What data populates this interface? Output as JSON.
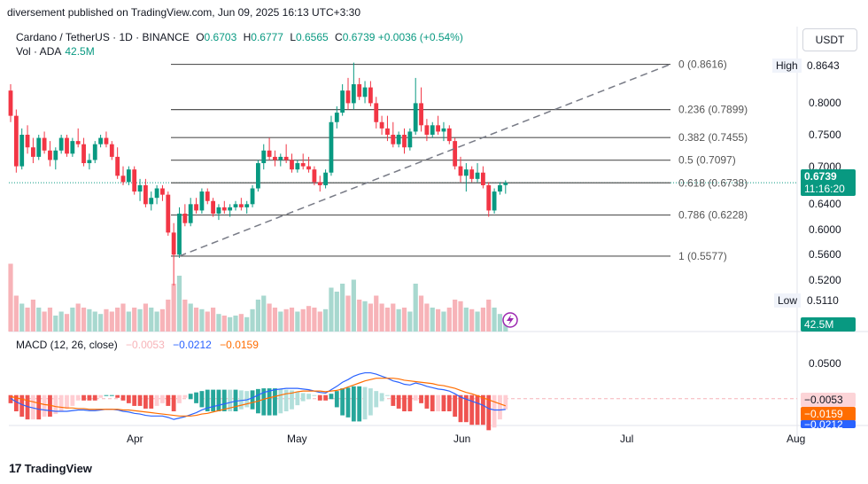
{
  "header": {
    "text": "diversement published on TradingView.com, Jun 09, 2025 16:13 UTC+3:30"
  },
  "legend": {
    "symbol": "Cardano / TetherUS · 1D · BINANCE",
    "o_label": "O",
    "o": "0.6703",
    "h_label": "H",
    "h": "0.6777",
    "l_label": "L",
    "l": "0.6565",
    "c_label": "C",
    "c": "0.6739",
    "change": "+0.0036 (+0.54%)",
    "vol_label": "Vol · ADA",
    "vol": "42.5M"
  },
  "macd_legend": {
    "label": "MACD (12, 26, close)",
    "hist": "−0.0053",
    "macd": "−0.0212",
    "signal": "−0.0159"
  },
  "currency": "USDT",
  "colors": {
    "up": "#089981",
    "down": "#f23645",
    "up_vol": "#a8d8cf",
    "down_vol": "#f7b3b8",
    "macd_line": "#2962ff",
    "signal_line": "#ff6d00",
    "fib": "#555555",
    "trend": "#787b86"
  },
  "price_axis_labels": [
    "0.8000",
    "0.7500",
    "0.7000",
    "0.6400",
    "0.6000",
    "0.5600",
    "0.5200"
  ],
  "macd_axis_labels": [
    "0.0500"
  ],
  "badges": {
    "high_label": "High",
    "high": "0.8643",
    "low_label": "Low",
    "low": "0.5110",
    "last": "0.6739",
    "countdown": "11:16:20",
    "vol": "42.5M",
    "hist": "−0.0053",
    "signal": "−0.0159",
    "macd": "−0.0212"
  },
  "x_labels": [
    "Apr",
    "May",
    "Jun",
    "Jul",
    "Aug"
  ],
  "footer": {
    "brand": "TradingView"
  },
  "chart_data": {
    "type": "candlestick",
    "symbol": "ADAUSDT",
    "timeframe": "1D",
    "fib_levels": [
      {
        "ratio": "0",
        "price": 0.8616,
        "label": "0 (0.8616)"
      },
      {
        "ratio": "0.236",
        "price": 0.7899,
        "label": "0.236 (0.7899)"
      },
      {
        "ratio": "0.382",
        "price": 0.7455,
        "label": "0.382 (0.7455)"
      },
      {
        "ratio": "0.5",
        "price": 0.7097,
        "label": "0.5 (0.7097)"
      },
      {
        "ratio": "0.618",
        "price": 0.6738,
        "label": "0.618 (0.6738)"
      },
      {
        "ratio": "0.786",
        "price": 0.6228,
        "label": "0.786 (0.6228)"
      },
      {
        "ratio": "1",
        "price": 0.5577,
        "label": "1 (0.5577)"
      }
    ],
    "candles": [
      [
        0.82,
        0.83,
        0.77,
        0.78
      ],
      [
        0.78,
        0.79,
        0.69,
        0.7
      ],
      [
        0.7,
        0.76,
        0.695,
        0.75
      ],
      [
        0.75,
        0.765,
        0.72,
        0.73
      ],
      [
        0.73,
        0.745,
        0.705,
        0.715
      ],
      [
        0.715,
        0.75,
        0.71,
        0.745
      ],
      [
        0.745,
        0.755,
        0.72,
        0.725
      ],
      [
        0.725,
        0.74,
        0.7,
        0.71
      ],
      [
        0.71,
        0.73,
        0.695,
        0.725
      ],
      [
        0.725,
        0.75,
        0.72,
        0.745
      ],
      [
        0.745,
        0.75,
        0.715,
        0.72
      ],
      [
        0.72,
        0.745,
        0.715,
        0.74
      ],
      [
        0.74,
        0.76,
        0.73,
        0.735
      ],
      [
        0.735,
        0.745,
        0.7,
        0.705
      ],
      [
        0.705,
        0.72,
        0.695,
        0.71
      ],
      [
        0.71,
        0.74,
        0.705,
        0.735
      ],
      [
        0.735,
        0.75,
        0.73,
        0.745
      ],
      [
        0.745,
        0.755,
        0.73,
        0.735
      ],
      [
        0.735,
        0.74,
        0.71,
        0.715
      ],
      [
        0.715,
        0.73,
        0.68,
        0.685
      ],
      [
        0.685,
        0.7,
        0.67,
        0.675
      ],
      [
        0.675,
        0.7,
        0.67,
        0.695
      ],
      [
        0.695,
        0.7,
        0.655,
        0.66
      ],
      [
        0.66,
        0.68,
        0.645,
        0.67
      ],
      [
        0.67,
        0.68,
        0.635,
        0.64
      ],
      [
        0.64,
        0.66,
        0.63,
        0.65
      ],
      [
        0.65,
        0.67,
        0.64,
        0.665
      ],
      [
        0.665,
        0.67,
        0.645,
        0.655
      ],
      [
        0.655,
        0.66,
        0.59,
        0.595
      ],
      [
        0.595,
        0.61,
        0.511,
        0.56
      ],
      [
        0.56,
        0.635,
        0.555,
        0.625
      ],
      [
        0.625,
        0.64,
        0.605,
        0.61
      ],
      [
        0.61,
        0.65,
        0.605,
        0.64
      ],
      [
        0.64,
        0.65,
        0.625,
        0.63
      ],
      [
        0.63,
        0.665,
        0.625,
        0.66
      ],
      [
        0.66,
        0.665,
        0.64,
        0.645
      ],
      [
        0.645,
        0.65,
        0.62,
        0.625
      ],
      [
        0.625,
        0.64,
        0.615,
        0.635
      ],
      [
        0.635,
        0.645,
        0.625,
        0.63
      ],
      [
        0.63,
        0.64,
        0.62,
        0.635
      ],
      [
        0.635,
        0.645,
        0.63,
        0.64
      ],
      [
        0.64,
        0.65,
        0.63,
        0.635
      ],
      [
        0.635,
        0.645,
        0.625,
        0.64
      ],
      [
        0.64,
        0.67,
        0.635,
        0.665
      ],
      [
        0.665,
        0.71,
        0.66,
        0.705
      ],
      [
        0.705,
        0.735,
        0.695,
        0.725
      ],
      [
        0.725,
        0.745,
        0.71,
        0.715
      ],
      [
        0.715,
        0.725,
        0.7,
        0.71
      ],
      [
        0.71,
        0.72,
        0.7,
        0.715
      ],
      [
        0.715,
        0.735,
        0.705,
        0.71
      ],
      [
        0.71,
        0.72,
        0.69,
        0.695
      ],
      [
        0.695,
        0.71,
        0.69,
        0.705
      ],
      [
        0.705,
        0.72,
        0.695,
        0.7
      ],
      [
        0.7,
        0.715,
        0.69,
        0.695
      ],
      [
        0.695,
        0.7,
        0.67,
        0.675
      ],
      [
        0.675,
        0.685,
        0.66,
        0.67
      ],
      [
        0.67,
        0.695,
        0.665,
        0.69
      ],
      [
        0.69,
        0.78,
        0.685,
        0.77
      ],
      [
        0.77,
        0.795,
        0.76,
        0.785
      ],
      [
        0.785,
        0.83,
        0.78,
        0.82
      ],
      [
        0.82,
        0.84,
        0.79,
        0.8
      ],
      [
        0.8,
        0.8643,
        0.79,
        0.83
      ],
      [
        0.83,
        0.84,
        0.805,
        0.81
      ],
      [
        0.81,
        0.835,
        0.8,
        0.825
      ],
      [
        0.825,
        0.835,
        0.795,
        0.8
      ],
      [
        0.8,
        0.81,
        0.76,
        0.77
      ],
      [
        0.77,
        0.78,
        0.75,
        0.76
      ],
      [
        0.76,
        0.78,
        0.74,
        0.75
      ],
      [
        0.75,
        0.77,
        0.73,
        0.735
      ],
      [
        0.735,
        0.755,
        0.73,
        0.75
      ],
      [
        0.75,
        0.76,
        0.72,
        0.73
      ],
      [
        0.73,
        0.76,
        0.725,
        0.755
      ],
      [
        0.755,
        0.84,
        0.75,
        0.8
      ],
      [
        0.8,
        0.825,
        0.755,
        0.765
      ],
      [
        0.765,
        0.775,
        0.74,
        0.75
      ],
      [
        0.75,
        0.77,
        0.745,
        0.765
      ],
      [
        0.765,
        0.78,
        0.75,
        0.755
      ],
      [
        0.755,
        0.77,
        0.74,
        0.76
      ],
      [
        0.76,
        0.765,
        0.735,
        0.74
      ],
      [
        0.74,
        0.745,
        0.695,
        0.7
      ],
      [
        0.7,
        0.715,
        0.675,
        0.685
      ],
      [
        0.685,
        0.705,
        0.66,
        0.695
      ],
      [
        0.695,
        0.7,
        0.675,
        0.68
      ],
      [
        0.68,
        0.705,
        0.675,
        0.69
      ],
      [
        0.69,
        0.7,
        0.665,
        0.67
      ],
      [
        0.67,
        0.675,
        0.62,
        0.63
      ],
      [
        0.63,
        0.665,
        0.625,
        0.66
      ],
      [
        0.66,
        0.675,
        0.655,
        0.67
      ],
      [
        0.6703,
        0.6777,
        0.6565,
        0.6739
      ]
    ],
    "candle_fields": [
      "open",
      "high",
      "low",
      "close"
    ],
    "volume_scale_max": 1.0,
    "volumes": [
      0.85,
      0.45,
      0.35,
      0.3,
      0.4,
      0.3,
      0.25,
      0.3,
      0.2,
      0.25,
      0.22,
      0.3,
      0.35,
      0.3,
      0.28,
      0.25,
      0.22,
      0.28,
      0.25,
      0.3,
      0.35,
      0.25,
      0.3,
      0.28,
      0.35,
      0.3,
      0.25,
      0.28,
      0.4,
      0.6,
      0.7,
      0.4,
      0.35,
      0.3,
      0.28,
      0.25,
      0.3,
      0.22,
      0.2,
      0.18,
      0.2,
      0.22,
      0.18,
      0.28,
      0.4,
      0.45,
      0.35,
      0.3,
      0.25,
      0.28,
      0.3,
      0.25,
      0.28,
      0.32,
      0.3,
      0.25,
      0.28,
      0.55,
      0.5,
      0.6,
      0.45,
      0.65,
      0.4,
      0.38,
      0.35,
      0.45,
      0.35,
      0.3,
      0.35,
      0.28,
      0.3,
      0.25,
      0.6,
      0.45,
      0.35,
      0.3,
      0.28,
      0.25,
      0.3,
      0.4,
      0.38,
      0.3,
      0.28,
      0.25,
      0.3,
      0.4,
      0.3,
      0.22,
      0.15
    ],
    "macd_range": [
      -0.045,
      0.06
    ],
    "macd": [
      -0.005,
      -0.01,
      -0.014,
      -0.017,
      -0.019,
      -0.021,
      -0.022,
      -0.023,
      -0.024,
      -0.024,
      -0.024,
      -0.023,
      -0.022,
      -0.022,
      -0.023,
      -0.023,
      -0.022,
      -0.021,
      -0.021,
      -0.022,
      -0.024,
      -0.025,
      -0.027,
      -0.028,
      -0.03,
      -0.031,
      -0.031,
      -0.031,
      -0.033,
      -0.036,
      -0.034,
      -0.032,
      -0.029,
      -0.026,
      -0.022,
      -0.019,
      -0.017,
      -0.015,
      -0.013,
      -0.011,
      -0.009,
      -0.008,
      -0.007,
      -0.004,
      0.0,
      0.004,
      0.006,
      0.008,
      0.009,
      0.01,
      0.01,
      0.01,
      0.009,
      0.008,
      0.006,
      0.004,
      0.003,
      0.008,
      0.013,
      0.019,
      0.023,
      0.028,
      0.031,
      0.033,
      0.033,
      0.031,
      0.028,
      0.025,
      0.021,
      0.019,
      0.016,
      0.015,
      0.018,
      0.016,
      0.013,
      0.011,
      0.009,
      0.008,
      0.006,
      0.002,
      -0.003,
      -0.006,
      -0.009,
      -0.012,
      -0.015,
      -0.02,
      -0.022,
      -0.022,
      -0.0212
    ],
    "signal": [
      -0.002,
      -0.004,
      -0.006,
      -0.008,
      -0.01,
      -0.012,
      -0.014,
      -0.015,
      -0.017,
      -0.018,
      -0.019,
      -0.019,
      -0.02,
      -0.02,
      -0.021,
      -0.021,
      -0.021,
      -0.021,
      -0.021,
      -0.021,
      -0.022,
      -0.022,
      -0.023,
      -0.024,
      -0.025,
      -0.026,
      -0.027,
      -0.028,
      -0.029,
      -0.03,
      -0.031,
      -0.031,
      -0.031,
      -0.03,
      -0.028,
      -0.027,
      -0.025,
      -0.023,
      -0.021,
      -0.019,
      -0.017,
      -0.015,
      -0.013,
      -0.011,
      -0.009,
      -0.006,
      -0.004,
      -0.002,
      0.0,
      0.002,
      0.003,
      0.005,
      0.006,
      0.006,
      0.006,
      0.006,
      0.005,
      0.006,
      0.007,
      0.009,
      0.012,
      0.015,
      0.018,
      0.021,
      0.023,
      0.025,
      0.025,
      0.025,
      0.025,
      0.024,
      0.022,
      0.021,
      0.02,
      0.019,
      0.018,
      0.017,
      0.015,
      0.014,
      0.012,
      0.01,
      0.007,
      0.004,
      0.002,
      -0.001,
      -0.004,
      -0.007,
      -0.01,
      -0.013,
      -0.0159
    ]
  }
}
